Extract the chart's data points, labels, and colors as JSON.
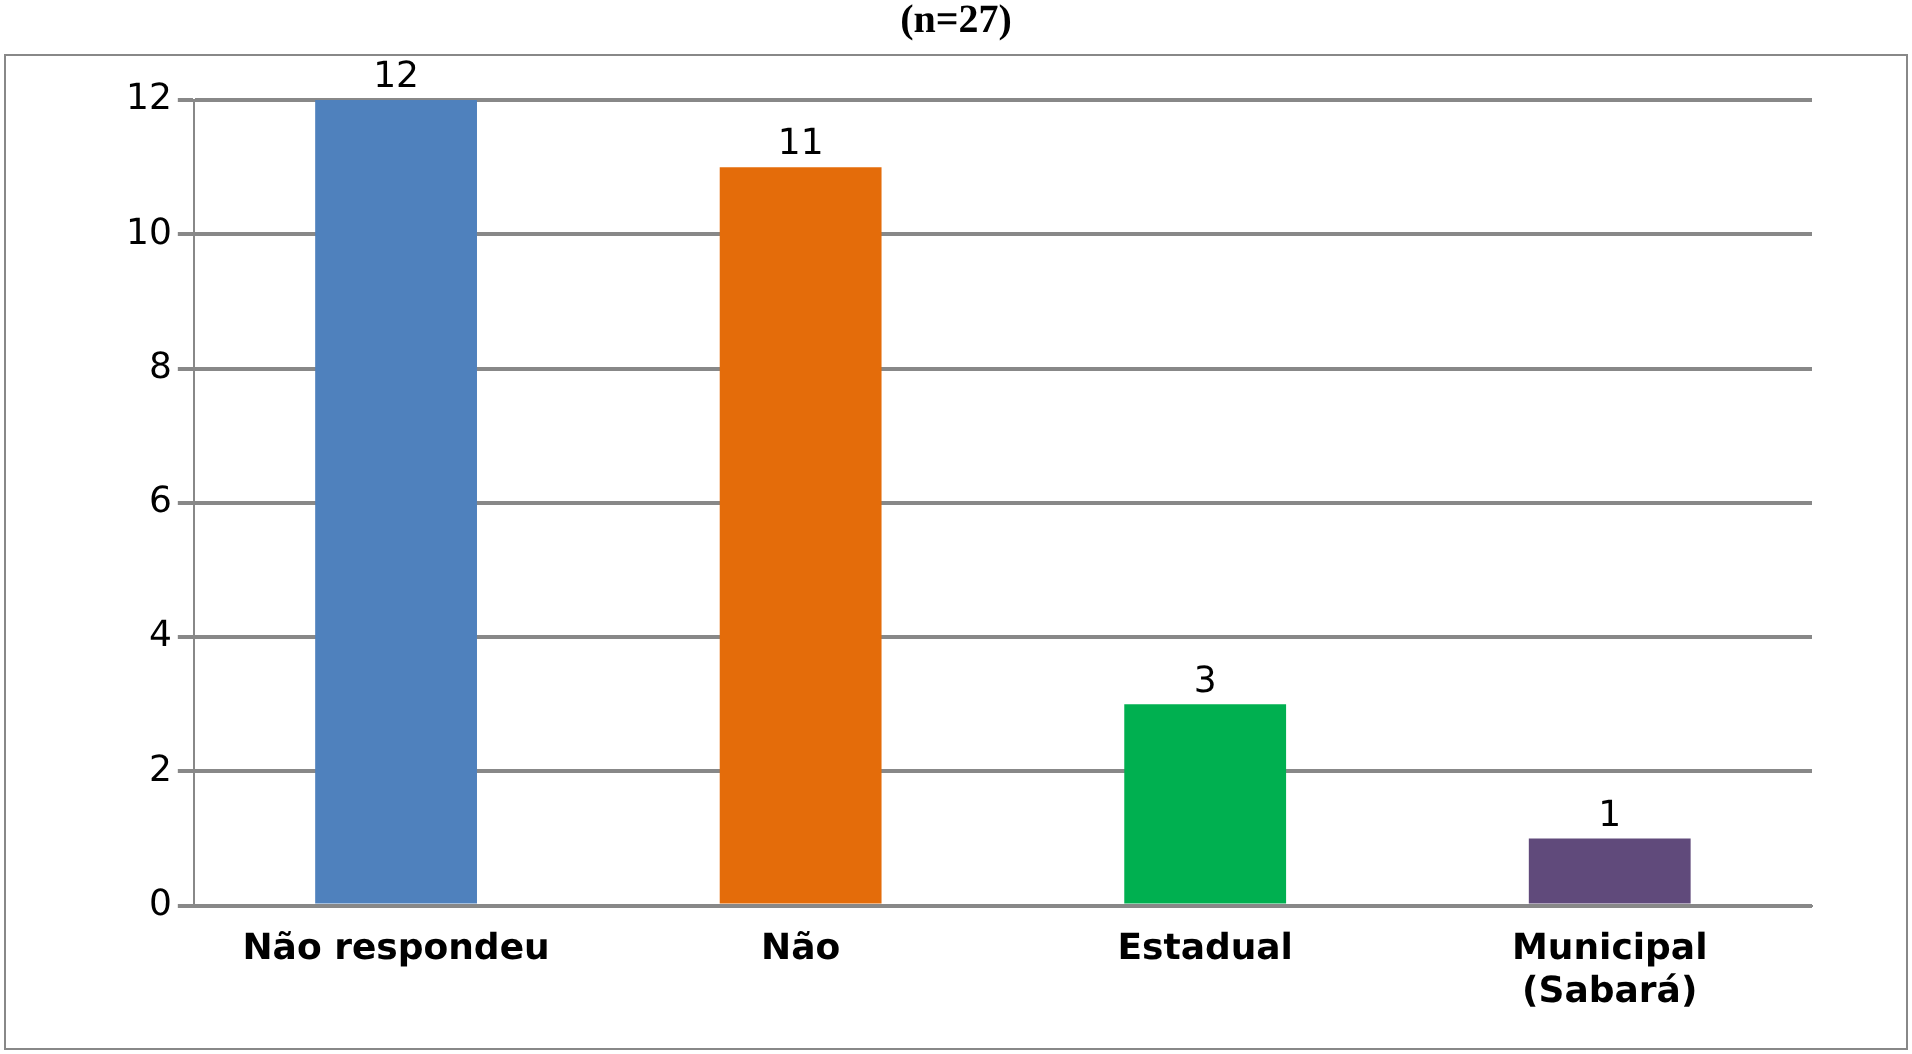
{
  "chart_data": {
    "type": "bar",
    "title": "(n=27)",
    "categories": [
      "Não respondeu",
      "Não",
      "Estadual",
      "Municipal (Sabará)"
    ],
    "values": [
      12,
      11,
      3,
      1
    ],
    "colors": [
      "#4f81bd",
      "#e46c0a",
      "#00b050",
      "#604a7b"
    ],
    "ylim": [
      0,
      12
    ],
    "yticks": [
      0,
      2,
      4,
      6,
      8,
      10,
      12
    ],
    "grid": "y",
    "data_labels": true
  }
}
